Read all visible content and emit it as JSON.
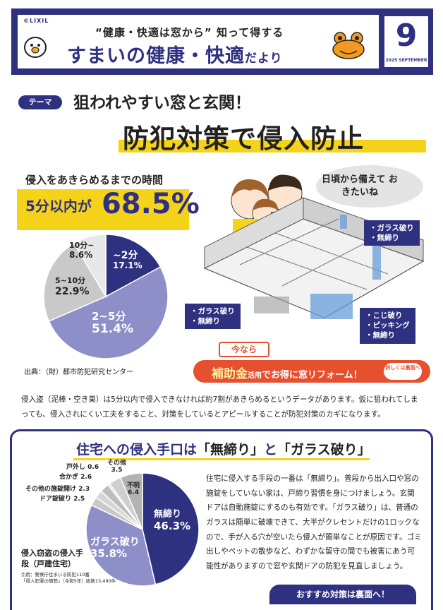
{
  "header": {
    "brand": "©LIXIL",
    "tagline": "“健康・快適は窓から” 知って得する",
    "title_main": "すまいの健康・快適",
    "title_small": "だより",
    "month_number": "9",
    "month_label": "2025 SEPTEMBER"
  },
  "theme": {
    "badge": "テーマ",
    "subtitle": "狙われやすい窓と玄関！",
    "title": "防犯対策で侵入防止"
  },
  "stats": {
    "heading": "侵入をあきらめるまでの時間",
    "highlight_prefix": "5分以内が",
    "highlight_value": "68.5%",
    "source": "出典：（財）都市防犯研究センター"
  },
  "chart_data": [
    {
      "type": "pie",
      "categories": [
        "~2分",
        "2~5分",
        "5~10分",
        "10分~"
      ],
      "values": [
        17.1,
        51.4,
        22.9,
        8.6
      ],
      "labels": [
        "17.1%",
        "51.4%",
        "22.9%",
        "8.6%"
      ],
      "colors": [
        "#2e3180",
        "#8e8fc9",
        "#c9c9c9",
        "#e8e8e8"
      ]
    },
    {
      "type": "pie",
      "categories": [
        "無締り",
        "ガラス破り",
        "ドア錠破り",
        "その他の施錠開け",
        "合かぎ",
        "戸外し",
        "その他",
        "不明"
      ],
      "values": [
        46.3,
        35.8,
        2.5,
        2.3,
        2.6,
        0.6,
        3.5,
        6.4
      ],
      "labels": [
        "46.3%",
        "35.8%",
        "2.5",
        "2.3",
        "2.6",
        "0.6",
        "3.5",
        "6.4"
      ],
      "colors": [
        "#2e3180",
        "#8e8fc9",
        "#c9c9c9",
        "#d6d6d6",
        "#bdbdbd",
        "#e0e0e0",
        "#cfcfcf",
        "#b3b3b3"
      ]
    }
  ],
  "illustration": {
    "speech": "日頃から備えて おきたいね",
    "label_top_right": [
      "・ガラス破り",
      "・無締り"
    ],
    "label_left": [
      "・ガラス破り",
      "・無締り"
    ],
    "label_right": [
      "・こじ破り",
      "・ピッキング",
      "・無締り"
    ]
  },
  "subsidy": {
    "now": "今なら",
    "big": "補助金",
    "rest_prefix": "活用",
    "rest": "でお得に窓リフォーム！",
    "link": "詳しくは裏面へ"
  },
  "body_text": "侵入盗（泥棒・空き巣）は5分以内で侵入できなければ約7割があきらめるというデータがあります。仮に狙われてしまっても、侵入されにくい工夫をすること、対策をしているとアピールすることが防犯対策のカギになります。",
  "bottom": {
    "title_pre": "住宅への侵入手口は",
    "title_h1": "「無締り」",
    "title_mid": "と",
    "title_h2": "「ガラス破り」",
    "chart_subtitle": "侵入窃盗の侵入手段（戸建住宅）",
    "chart_source_1": "引用：警察庁住まいる防犯110番",
    "chart_source_2": "「侵入犯罪の情勢」（令和5年）総数13,490件",
    "text": "住宅に侵入する手段の一番は「無締り」。普段から出入口や窓の施錠をしていない家は、戸締り習慣を身につけましょう。玄関ドアは自動施錠にするのも有効です。「ガラス破り」は、普通のガラスは簡単に破壊できて、大半がクレセントだけの1ロックなので、手が入る穴が空いたら侵入が簡単なことが原因です。ゴミ出しやペットの散歩など、わずかな留守の間でも被害にあう可能性がありますので窓や玄関ドアの防犯を見直しましょう。",
    "recommend": "おすすめ対策は裏面へ！"
  }
}
